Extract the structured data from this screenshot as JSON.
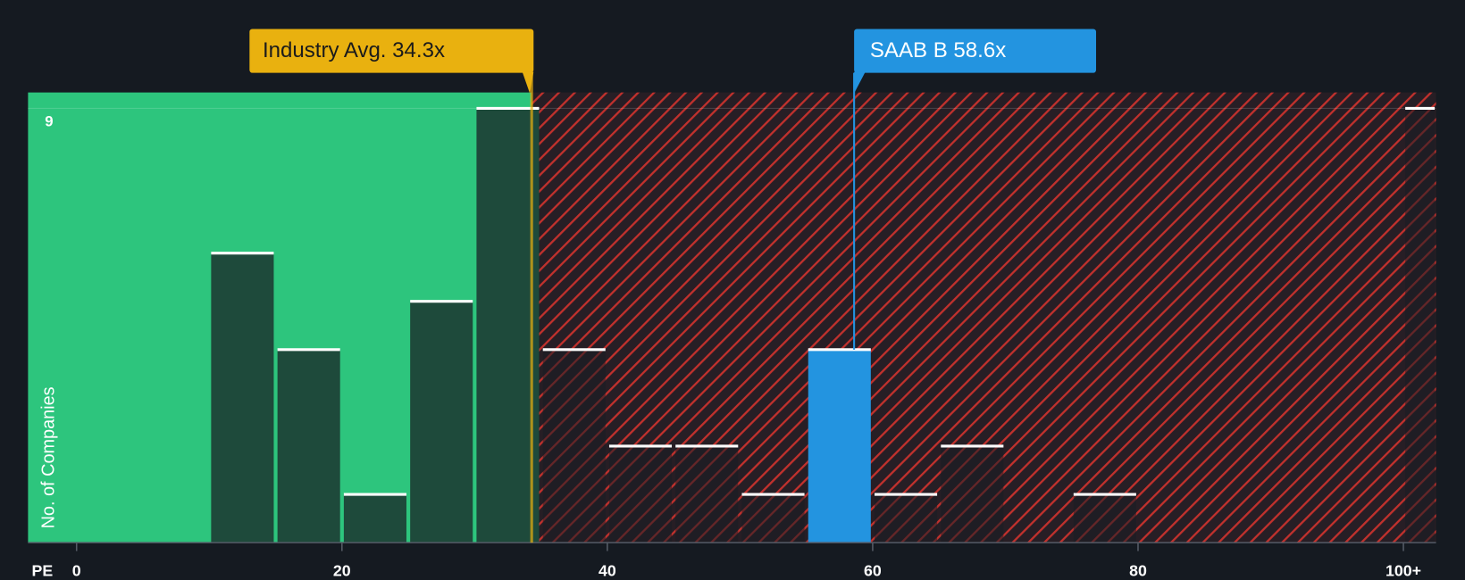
{
  "chart_data": {
    "type": "histogram",
    "xlabel": "PE",
    "ylabel": "No. of Companies",
    "bins": [
      10,
      15,
      20,
      25,
      30,
      35,
      40,
      45,
      50,
      55,
      60,
      65,
      70,
      75,
      80,
      85,
      90,
      95,
      100,
      102.5
    ],
    "values": [
      6,
      4,
      1,
      5,
      9,
      4,
      2,
      2,
      1,
      4,
      1,
      2,
      0,
      1,
      0,
      0,
      0,
      0,
      9
    ],
    "xlim": [
      -3.66,
      102.46
    ],
    "ylim": [
      0,
      9
    ],
    "xticks": [
      0,
      20,
      40,
      60,
      80,
      {
        "value": 100,
        "label": "100+"
      }
    ],
    "yticks": [
      9
    ],
    "annotations": [
      {
        "label": "Industry Avg. 34.3x",
        "value": 34.3,
        "color": "#e9b10f"
      },
      {
        "label": "SAAB B 58.6x",
        "value": 58.6,
        "color": "#2394e0"
      }
    ],
    "good_color": "#2dc57d",
    "bad_color": "#d0312d"
  }
}
